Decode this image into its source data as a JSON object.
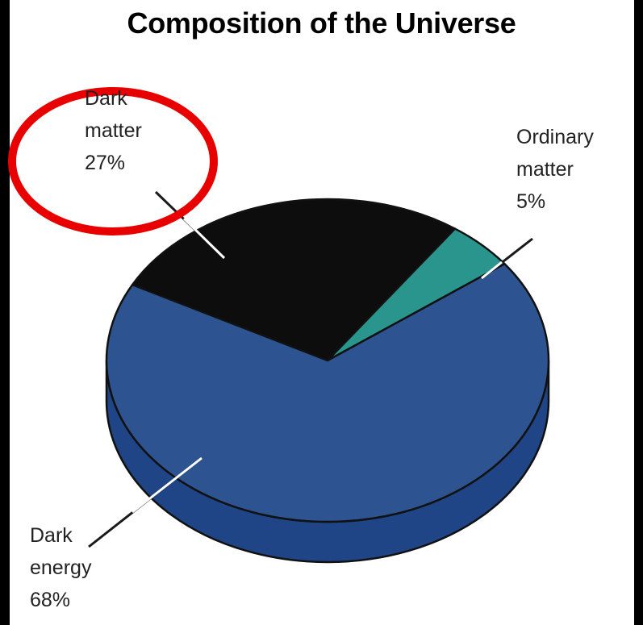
{
  "chart_data": {
    "type": "pie",
    "style": "3d",
    "title": "Composition of the Universe",
    "slices": [
      {
        "label": "Dark matter",
        "value": 27,
        "label_lines": [
          "Dark",
          "matter",
          "27%"
        ],
        "color": "#0d0d0d"
      },
      {
        "label": "Ordinary matter",
        "value": 5,
        "label_lines": [
          "Ordinary",
          "matter",
          "5%"
        ],
        "color": "#2a958d"
      },
      {
        "label": "Dark energy",
        "value": 68,
        "label_lines": [
          "Dark",
          "energy",
          "68%"
        ],
        "color": "#2d5490"
      }
    ],
    "side_color": "#1f4586",
    "highlight": {
      "target": "Dark matter",
      "shape": "circle",
      "color": "#e80000"
    }
  }
}
